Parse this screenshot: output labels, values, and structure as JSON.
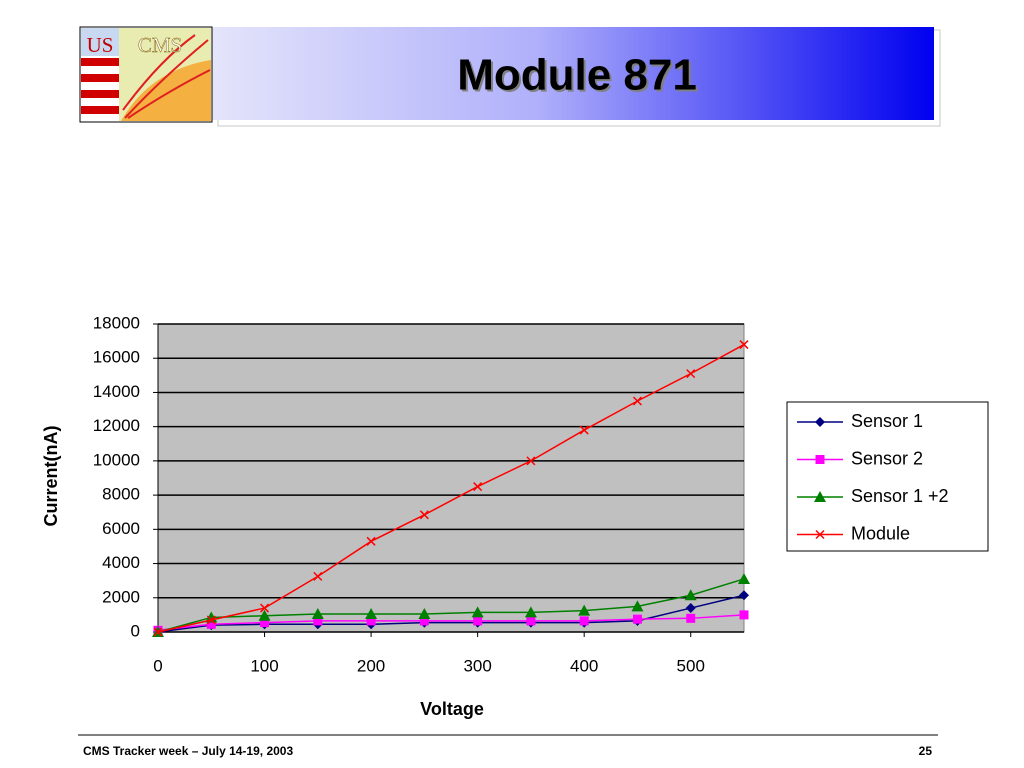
{
  "header": {
    "title": "Module 871",
    "logo": {
      "left": "US",
      "right": "CMS"
    }
  },
  "chart_data": {
    "type": "line",
    "x_label": "Voltage",
    "y_label": "Current(nA)",
    "x": [
      0,
      50,
      100,
      150,
      200,
      250,
      300,
      350,
      400,
      450,
      500,
      550
    ],
    "xlim": [
      0,
      550
    ],
    "xticks": [
      0,
      100,
      200,
      300,
      400,
      500
    ],
    "ylim": [
      0,
      18000
    ],
    "yticks": [
      0,
      2000,
      4000,
      6000,
      8000,
      10000,
      12000,
      14000,
      16000,
      18000
    ],
    "grid": true,
    "legend": "right",
    "series": [
      {
        "name": "Sensor 1",
        "color": "#000080",
        "marker": "diamond",
        "values": [
          0,
          400,
          450,
          450,
          450,
          550,
          550,
          550,
          550,
          650,
          1400,
          2150
        ]
      },
      {
        "name": "Sensor 2",
        "color": "#ff00ff",
        "marker": "square",
        "values": [
          100,
          450,
          550,
          650,
          650,
          650,
          650,
          650,
          650,
          750,
          800,
          1000
        ]
      },
      {
        "name": "Sensor 1 +2",
        "color": "#008000",
        "marker": "triangle",
        "values": [
          0,
          850,
          950,
          1050,
          1050,
          1050,
          1150,
          1150,
          1250,
          1500,
          2150,
          3100
        ]
      },
      {
        "name": "Module",
        "color": "#ff0000",
        "marker": "x",
        "values": [
          0,
          700,
          1400,
          3250,
          5300,
          6850,
          8500,
          10000,
          11800,
          13500,
          15100,
          16800
        ]
      }
    ]
  },
  "footer": {
    "left": "CMS Tracker week – July 14-19, 2003",
    "page": "25"
  }
}
